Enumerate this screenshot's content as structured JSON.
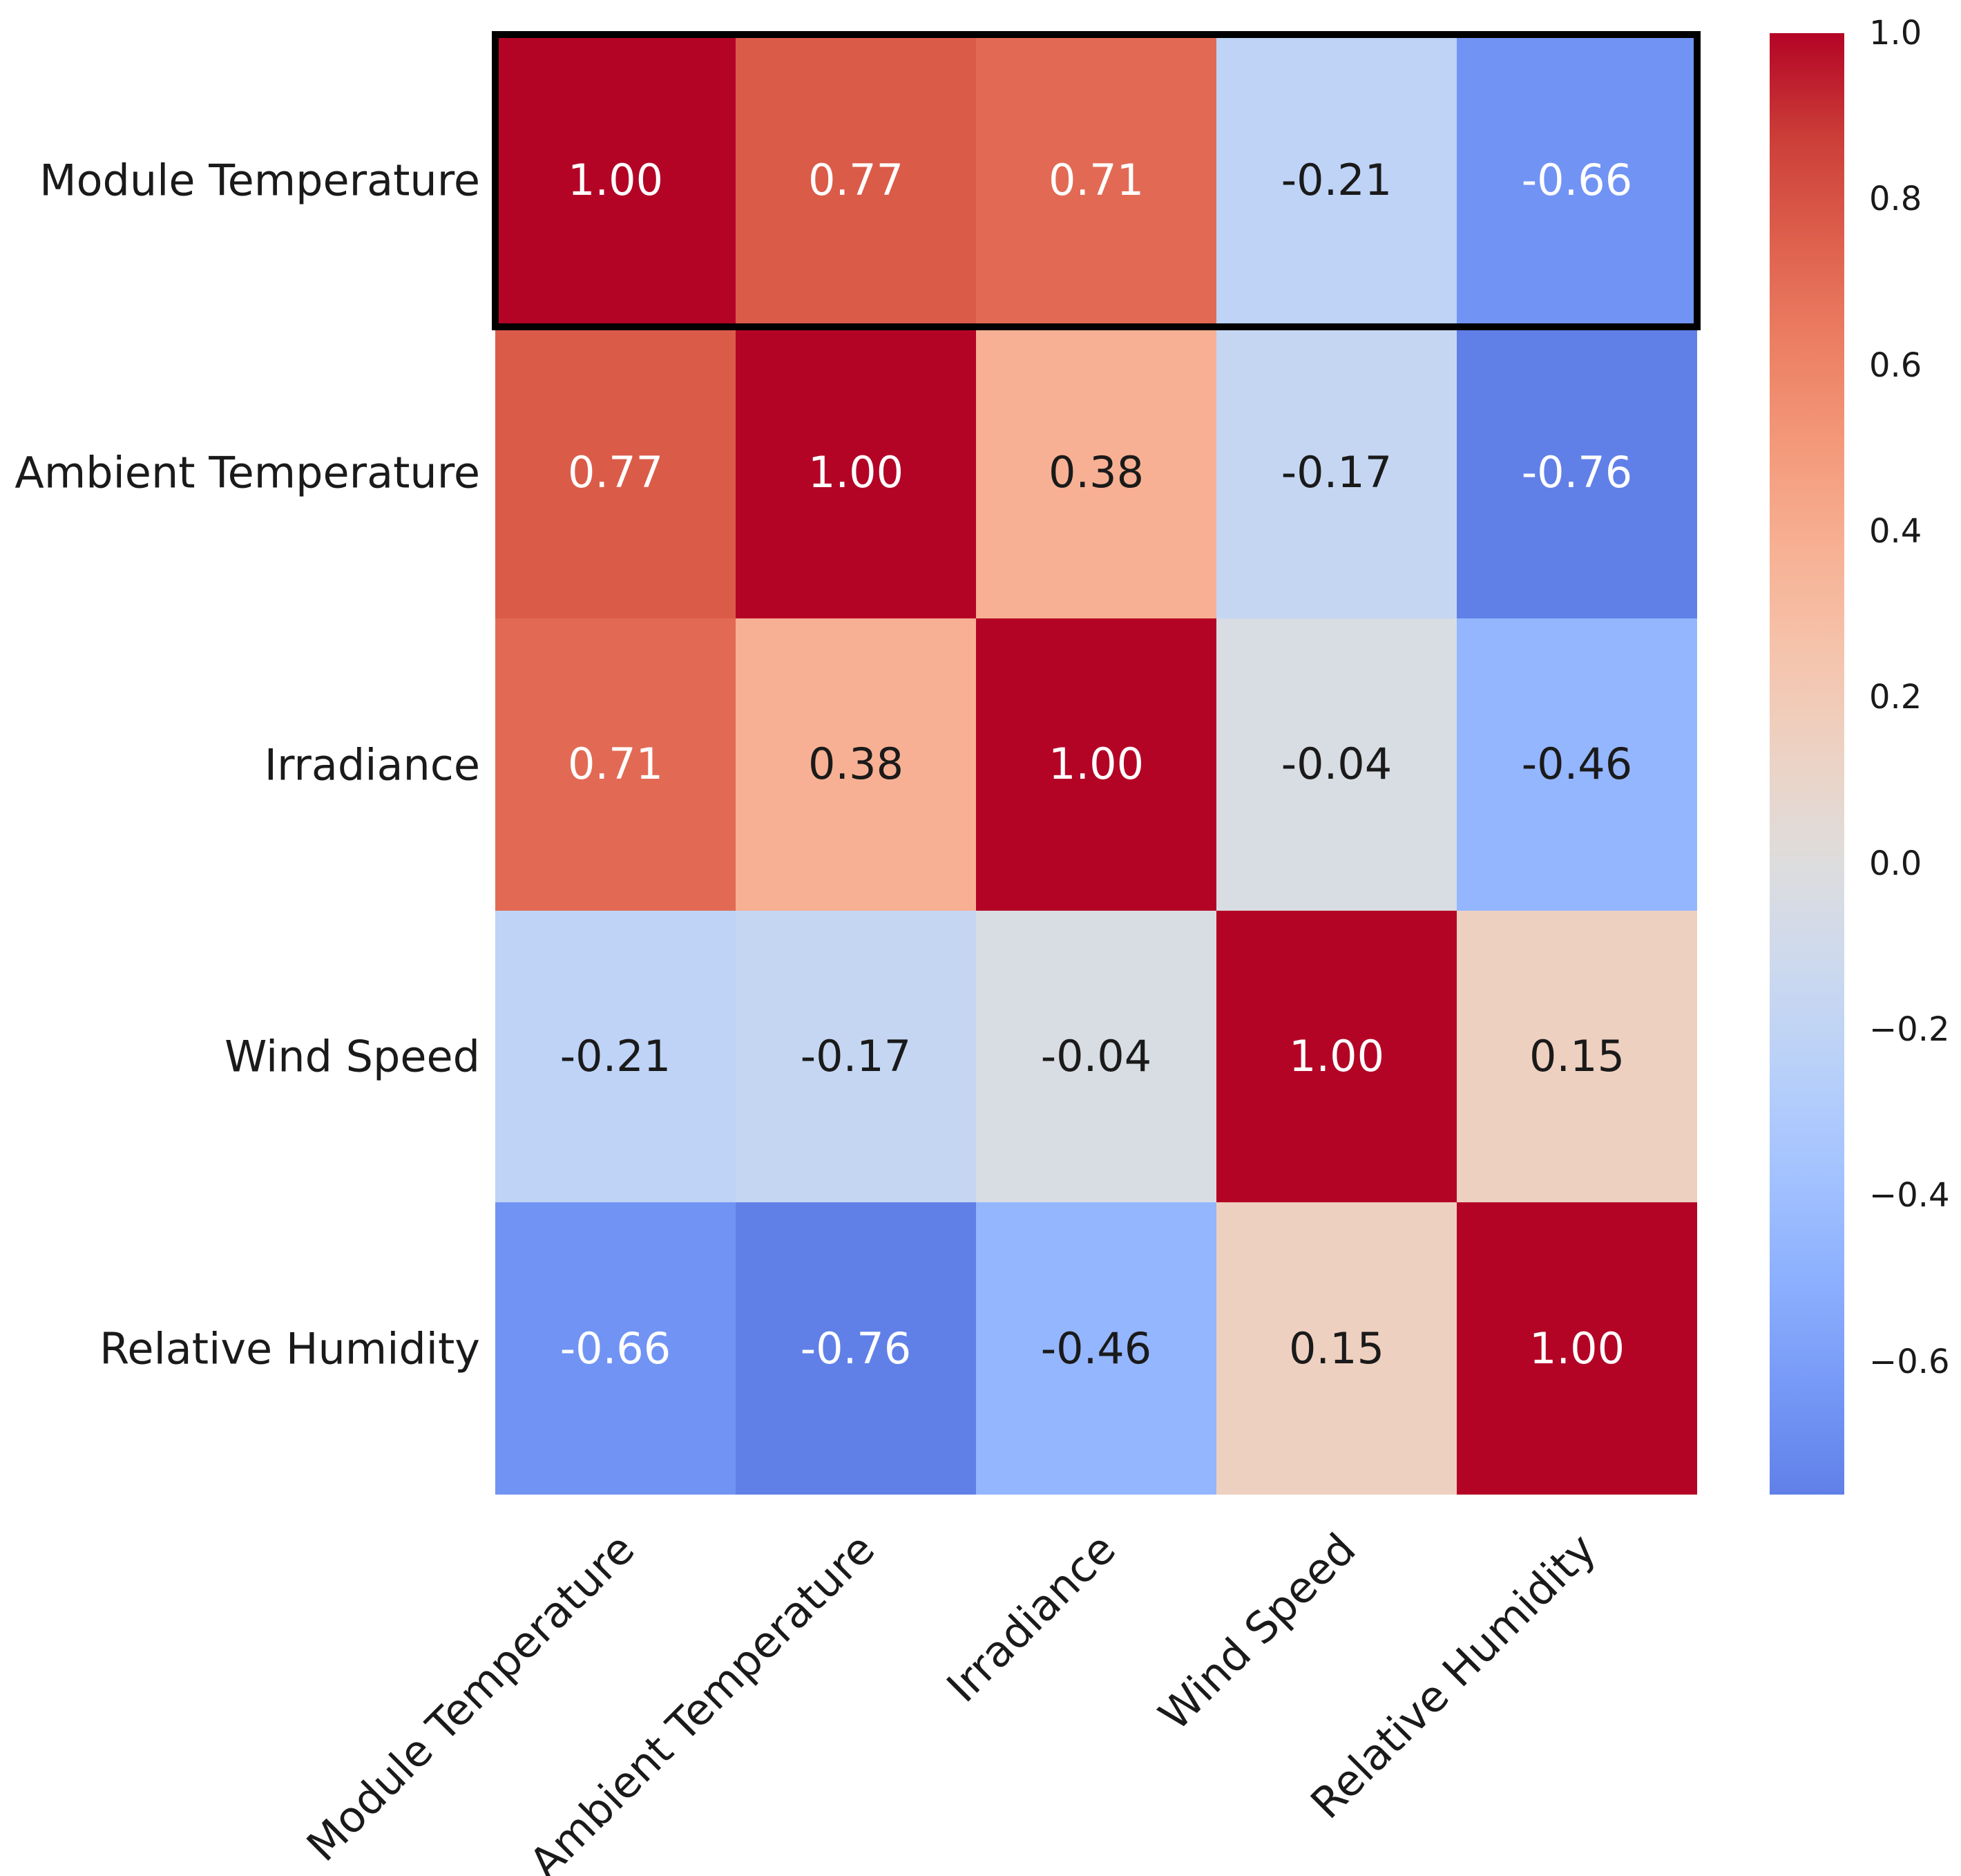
{
  "figure": {
    "background_color": "#ffffff"
  },
  "chart_data": {
    "type": "heatmap",
    "title": "",
    "variables": [
      "Module Temperature",
      "Ambient Temperature",
      "Irradiance",
      "Wind Speed",
      "Relative Humidity"
    ],
    "matrix": [
      [
        1.0,
        0.77,
        0.71,
        -0.21,
        -0.66
      ],
      [
        0.77,
        1.0,
        0.38,
        -0.17,
        -0.76
      ],
      [
        0.71,
        0.38,
        1.0,
        -0.04,
        -0.46
      ],
      [
        -0.21,
        -0.17,
        -0.04,
        1.0,
        0.15
      ],
      [
        -0.66,
        -0.76,
        -0.46,
        0.15,
        1.0
      ]
    ],
    "cell_colors": [
      [
        "#b40426",
        "#db5b49",
        "#e26a54",
        "#bed3f6",
        "#7193f4"
      ],
      [
        "#db5b49",
        "#b40426",
        "#f7b093",
        "#c5d6f2",
        "#6080e8"
      ],
      [
        "#e26a54",
        "#f7b093",
        "#b40426",
        "#d8dce3",
        "#94b6ff"
      ],
      [
        "#bed3f6",
        "#c5d6f2",
        "#d8dce3",
        "#b40426",
        "#eed0c0"
      ],
      [
        "#7193f4",
        "#6080e8",
        "#94b6ff",
        "#eed0c0",
        "#b40426"
      ]
    ],
    "annotation_decimals": 2,
    "colormap": "coolwarm",
    "vmin": -0.76,
    "vmax": 1.0,
    "center": 0,
    "grid": false,
    "highlight": {
      "row_label": "Module Temperature",
      "row_index": 0,
      "border_color": "#000000"
    },
    "annotation_text_colors": {
      "light": "#ffffff",
      "dark": "#1a1a1a"
    },
    "colorbar": {
      "tick_labels": [
        "1.0",
        "0.8",
        "0.6",
        "0.4",
        "0.2",
        "0.0",
        "−0.2",
        "−0.4",
        "−0.6"
      ],
      "tick_values": [
        1.0,
        0.8,
        0.6,
        0.4,
        0.2,
        0.0,
        -0.2,
        -0.4,
        -0.6
      ],
      "top_color": "#b40426",
      "mid_color": "#dddddd",
      "bottom_color": "#6080e8",
      "position": "right"
    }
  }
}
